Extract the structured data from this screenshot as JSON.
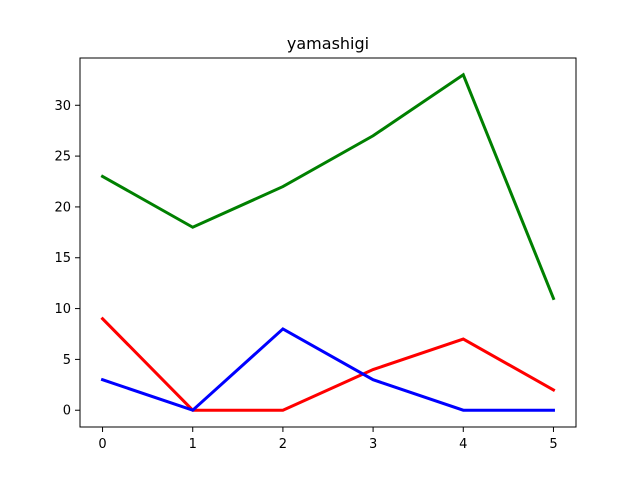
{
  "chart_data": {
    "type": "line",
    "title": "yamashigi",
    "xlabel": "",
    "ylabel": "",
    "x": [
      0,
      1,
      2,
      3,
      4,
      5
    ],
    "xlim": [
      -0.25,
      5.25
    ],
    "ylim": [
      -1.65,
      34.65
    ],
    "xticks": [
      0,
      1,
      2,
      3,
      4,
      5
    ],
    "yticks": [
      0,
      5,
      10,
      15,
      20,
      25,
      30
    ],
    "grid": false,
    "legend": "none",
    "series": [
      {
        "color": "#008000",
        "values": [
          23,
          18,
          22,
          27,
          33,
          11
        ]
      },
      {
        "color": "#ff0000",
        "values": [
          9,
          0,
          0,
          4,
          7,
          2
        ]
      },
      {
        "color": "#0000ff",
        "values": [
          3,
          0,
          8,
          3,
          0,
          0
        ]
      }
    ]
  }
}
